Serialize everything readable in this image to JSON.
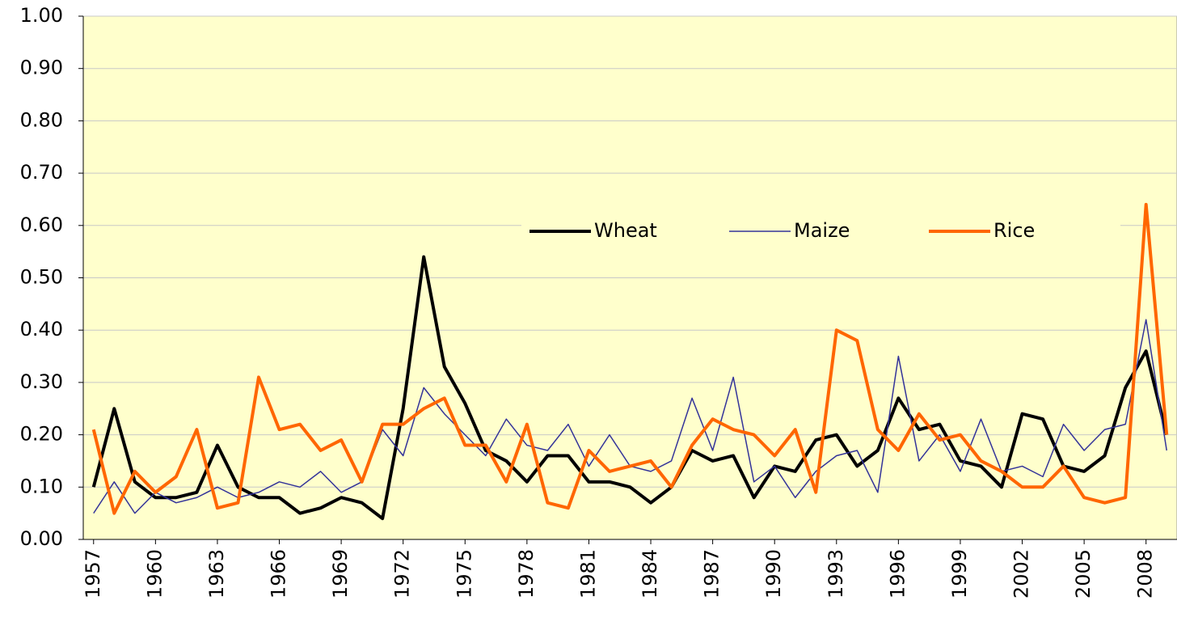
{
  "chart_data": {
    "type": "line",
    "x": [
      1957,
      1958,
      1959,
      1960,
      1961,
      1962,
      1963,
      1964,
      1965,
      1966,
      1967,
      1968,
      1969,
      1970,
      1971,
      1972,
      1973,
      1974,
      1975,
      1976,
      1977,
      1978,
      1979,
      1980,
      1981,
      1982,
      1983,
      1984,
      1985,
      1986,
      1987,
      1988,
      1989,
      1990,
      1991,
      1992,
      1993,
      1994,
      1995,
      1996,
      1997,
      1998,
      1999,
      2000,
      2001,
      2002,
      2003,
      2004,
      2005,
      2006,
      2007,
      2008,
      2009
    ],
    "series": [
      {
        "name": "Wheat",
        "color": "#000000",
        "width": 4,
        "values": [
          0.1,
          0.25,
          0.11,
          0.08,
          0.08,
          0.09,
          0.18,
          0.1,
          0.08,
          0.08,
          0.05,
          0.06,
          0.08,
          0.07,
          0.04,
          0.25,
          0.54,
          0.33,
          0.26,
          0.17,
          0.15,
          0.11,
          0.16,
          0.16,
          0.11,
          0.11,
          0.1,
          0.07,
          0.1,
          0.17,
          0.15,
          0.16,
          0.08,
          0.14,
          0.13,
          0.19,
          0.2,
          0.14,
          0.17,
          0.27,
          0.21,
          0.22,
          0.15,
          0.14,
          0.1,
          0.24,
          0.23,
          0.14,
          0.13,
          0.16,
          0.29,
          0.36,
          0.2
        ]
      },
      {
        "name": "Maize",
        "color": "#333399",
        "width": 1.5,
        "values": [
          0.05,
          0.11,
          0.05,
          0.09,
          0.07,
          0.08,
          0.1,
          0.08,
          0.09,
          0.11,
          0.1,
          0.13,
          0.09,
          0.11,
          0.21,
          0.16,
          0.29,
          0.24,
          0.2,
          0.16,
          0.23,
          0.18,
          0.17,
          0.22,
          0.14,
          0.2,
          0.14,
          0.13,
          0.15,
          0.27,
          0.17,
          0.31,
          0.11,
          0.14,
          0.08,
          0.13,
          0.16,
          0.17,
          0.09,
          0.35,
          0.15,
          0.2,
          0.13,
          0.23,
          0.13,
          0.14,
          0.12,
          0.22,
          0.17,
          0.21,
          0.22,
          0.42,
          0.17
        ]
      },
      {
        "name": "Rice",
        "color": "#ff6600",
        "width": 4,
        "values": [
          0.21,
          0.05,
          0.13,
          0.09,
          0.12,
          0.21,
          0.06,
          0.07,
          0.31,
          0.21,
          0.22,
          0.17,
          0.19,
          0.11,
          0.22,
          0.22,
          0.25,
          0.27,
          0.18,
          0.18,
          0.11,
          0.22,
          0.07,
          0.06,
          0.17,
          0.13,
          0.14,
          0.15,
          0.1,
          0.18,
          0.23,
          0.21,
          0.2,
          0.16,
          0.21,
          0.09,
          0.4,
          0.38,
          0.21,
          0.17,
          0.24,
          0.19,
          0.2,
          0.15,
          0.13,
          0.1,
          0.1,
          0.14,
          0.08,
          0.07,
          0.08,
          0.64,
          0.2
        ]
      }
    ],
    "xlim": [
      1956.5,
      2009.5
    ],
    "xticks": [
      1957,
      1960,
      1963,
      1966,
      1969,
      1972,
      1975,
      1978,
      1981,
      1984,
      1987,
      1990,
      1993,
      1996,
      1999,
      2002,
      2005,
      2008
    ],
    "ylim": [
      0,
      1
    ],
    "yticks": [
      {
        "value": 0,
        "label": "0.00"
      },
      {
        "value": 0.1,
        "label": "0.10"
      },
      {
        "value": 0.2,
        "label": "0.20"
      },
      {
        "value": 0.3,
        "label": "0.30"
      },
      {
        "value": 0.4,
        "label": "0.40"
      },
      {
        "value": 0.5,
        "label": "0.50"
      },
      {
        "value": 0.6,
        "label": "0.60"
      },
      {
        "value": 0.7,
        "label": "0.70"
      },
      {
        "value": 0.8,
        "label": "0.80"
      },
      {
        "value": 0.9,
        "label": "0.90"
      },
      {
        "value": 1,
        "label": "1.00"
      }
    ],
    "grid": true,
    "background": "#ffffcc"
  }
}
